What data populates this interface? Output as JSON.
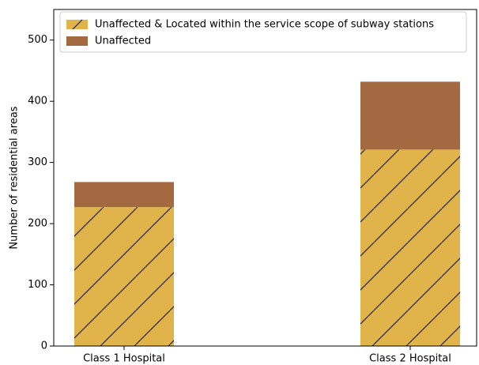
{
  "chart_data": {
    "type": "stacked_bar",
    "y_label": "Number of residential areas",
    "categories": [
      "Class 1 Hospital",
      "Class 2 Hospital"
    ],
    "series": [
      {
        "name": "Unaffected & Located within the service scope of subway stations",
        "color": "#e0b44b",
        "hatch": "/",
        "values": [
          227,
          321
        ]
      },
      {
        "name": "Unaffected",
        "color": "#a36a42",
        "values": [
          41,
          111
        ]
      }
    ],
    "ylim": [
      0,
      550
    ],
    "yticks": [
      0,
      100,
      200,
      300,
      400,
      500
    ],
    "legend": "upper left"
  }
}
